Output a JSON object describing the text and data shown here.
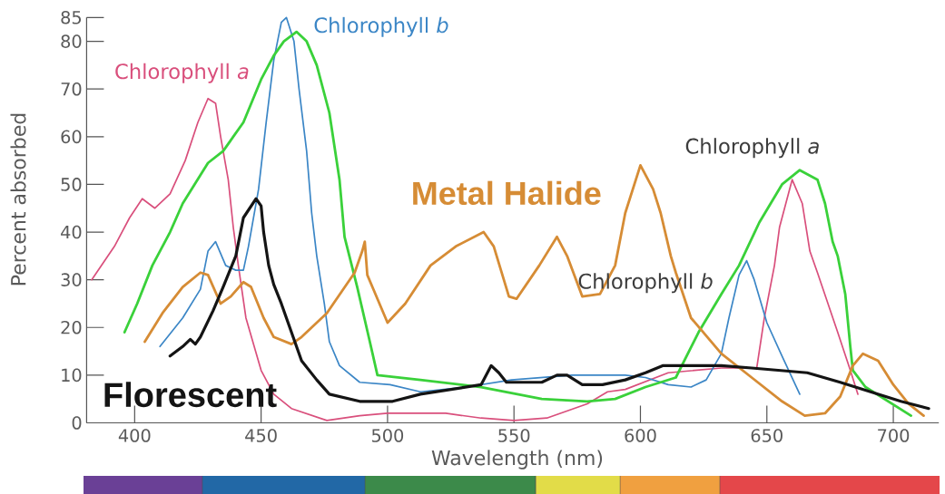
{
  "chart_data": {
    "type": "line",
    "xlabel": "Wavelength (nm)",
    "ylabel": "Percent absorbed",
    "xlim": [
      381,
      718
    ],
    "ylim": [
      0,
      85
    ],
    "xticks": [
      400,
      450,
      500,
      550,
      600,
      650,
      700
    ],
    "yticks": [
      0,
      10,
      20,
      30,
      40,
      50,
      60,
      70,
      80,
      85
    ],
    "series": [
      {
        "name": "Chlorophyll *a*",
        "color": "#d94f7c",
        "x": [
          383,
          392,
          398,
          403,
          408,
          414,
          420,
          425,
          429,
          432,
          434,
          437,
          439,
          441,
          444,
          450,
          455,
          462,
          476,
          489,
          500,
          523,
          537,
          550,
          563,
          579,
          587,
          594,
          611,
          632,
          646,
          649,
          653,
          655,
          660,
          664,
          667,
          670,
          678,
          683,
          686
        ],
        "values": [
          30,
          37,
          43,
          47,
          45,
          48,
          55,
          63,
          68,
          67,
          60,
          51,
          41,
          33,
          22,
          11,
          6,
          3,
          0.5,
          1.5,
          2,
          2,
          1,
          0.5,
          1,
          4,
          6.5,
          7,
          10.5,
          11.5,
          11.5,
          22,
          33,
          41,
          51,
          46,
          36,
          31.5,
          19,
          11,
          6
        ]
      },
      {
        "name": "Chlorophyll *b*",
        "color": "#3b86c6",
        "x": [
          410,
          419,
          426,
          429,
          432,
          436,
          440,
          443,
          445,
          449,
          452,
          455,
          458,
          460,
          463,
          465,
          468,
          470,
          472,
          475,
          477,
          481,
          489,
          501,
          513,
          531,
          549,
          573,
          594,
          602,
          611,
          620,
          626,
          632,
          635,
          639,
          642,
          645,
          650,
          656,
          663
        ],
        "values": [
          16,
          22,
          28,
          36,
          38,
          33,
          32,
          32,
          37,
          49,
          63,
          76,
          84,
          85,
          80,
          70,
          57,
          44,
          35,
          25,
          17,
          12,
          8.5,
          8,
          6.5,
          7.5,
          9,
          10,
          10,
          9.5,
          8,
          7.5,
          9,
          14.5,
          22,
          31,
          34,
          30,
          21,
          14,
          6
        ]
      },
      {
        "color": "#3ad13a",
        "x": [
          396,
          401,
          407,
          414,
          419,
          429,
          435,
          443,
          450,
          455,
          459,
          464,
          468,
          472,
          477,
          481,
          483,
          488,
          493,
          496,
          513,
          537,
          561,
          579,
          590,
          602,
          614,
          623,
          632,
          639,
          647,
          656,
          663,
          670,
          673,
          676,
          678,
          681,
          683,
          684,
          689,
          707
        ],
        "values": [
          19,
          25,
          33,
          40,
          46,
          54.5,
          57,
          63,
          72,
          77,
          80,
          82,
          80,
          75,
          65,
          51,
          39,
          28.5,
          17,
          10,
          9,
          7.5,
          5,
          4.5,
          5,
          7.5,
          9.5,
          19,
          27,
          33,
          42,
          50,
          53,
          51,
          46,
          38,
          35,
          27,
          16,
          11,
          7.5,
          1.5
        ]
      },
      {
        "name": "Metal Halide",
        "color": "#d68c35",
        "x": [
          404,
          411,
          419,
          426,
          429,
          434,
          438,
          443,
          446,
          451,
          455,
          462,
          466,
          476,
          487,
          490,
          491,
          492,
          494,
          500,
          507,
          517,
          527,
          538,
          542,
          548,
          551,
          560,
          567,
          571,
          577,
          584,
          590,
          594,
          600,
          605,
          608,
          612,
          614,
          620,
          632,
          644,
          656,
          665,
          673,
          679,
          684,
          688,
          694,
          700,
          706,
          712
        ],
        "values": [
          17,
          23,
          28.5,
          31.5,
          31,
          25,
          26.5,
          29.5,
          28.5,
          22,
          18,
          16.5,
          18,
          23,
          31.5,
          36,
          38,
          31,
          28.5,
          21,
          25,
          33,
          37,
          40,
          37,
          26.5,
          26,
          33,
          39,
          35,
          26.5,
          27,
          33,
          44,
          54,
          49,
          44,
          35,
          31.5,
          22,
          14.5,
          9.5,
          4.5,
          1.5,
          2,
          5.5,
          12,
          14.5,
          13,
          8,
          4,
          1.5
        ]
      },
      {
        "name": "Florescent",
        "color": "#141414",
        "x": [
          414,
          419,
          422,
          424,
          426,
          431,
          435,
          440,
          443,
          448,
          450,
          451,
          453,
          455,
          458,
          462,
          466,
          472,
          477,
          489,
          502,
          513,
          525,
          537,
          541,
          544,
          547,
          561,
          567,
          571,
          577,
          585,
          594,
          602,
          609,
          632,
          644,
          666,
          679,
          691,
          703,
          714
        ],
        "values": [
          14,
          16,
          17.5,
          16.5,
          18,
          23.5,
          28.5,
          35,
          43,
          47,
          45.5,
          40,
          33,
          29,
          25,
          19,
          13,
          9,
          6,
          4.5,
          4.5,
          6,
          7,
          8,
          12,
          10.5,
          8.5,
          8.5,
          10,
          10,
          8,
          8,
          9,
          10.5,
          12,
          12,
          11.5,
          10.5,
          8.5,
          6.5,
          4.5,
          3
        ]
      }
    ],
    "annotations": [
      {
        "text": "Chlorophyll *a*",
        "x": 660,
        "y": 51
      },
      {
        "text": "Chlorophyll *b*",
        "x": 642,
        "y": 34
      }
    ]
  }
}
